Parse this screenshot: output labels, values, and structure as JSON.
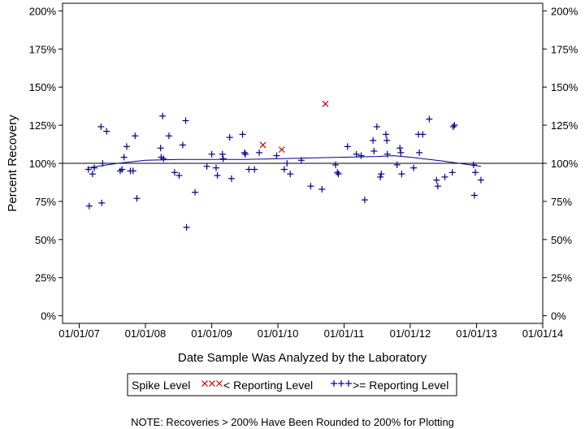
{
  "chart_data": {
    "type": "scatter",
    "title": "",
    "xlabel": "Date Sample Was Analyzed by the Laboratory",
    "ylabel": "Percent Recovery",
    "x_ticks": [
      "01/01/07",
      "01/01/08",
      "01/01/09",
      "01/01/10",
      "01/01/11",
      "01/01/12",
      "01/01/13",
      "01/01/14"
    ],
    "y_ticks": [
      "0%",
      "25%",
      "50%",
      "75%",
      "100%",
      "125%",
      "150%",
      "175%",
      "200%"
    ],
    "xlim": [
      "2006-10-01",
      "2014-01-01"
    ],
    "ylim": [
      -5,
      205
    ],
    "reference_line": 100,
    "legend": {
      "title": "Spike Level",
      "entries": [
        {
          "label": "< Reporting Level",
          "marker": "x",
          "color": "#cc0000"
        },
        {
          "label": ">= Reporting Level",
          "marker": "+",
          "color": "#00008b"
        }
      ]
    },
    "note": "NOTE: Recoveries > 200% Have Been Rounded to 200% for Plotting",
    "series": [
      {
        "name": "< Reporting Level",
        "marker": "x",
        "color": "#cc0000",
        "points": [
          {
            "x": "2009-10-10",
            "y": 112
          },
          {
            "x": "2010-01-22",
            "y": 109
          },
          {
            "x": "2010-09-20",
            "y": 139
          }
        ]
      },
      {
        "name": ">= Reporting Level",
        "marker": "+",
        "color": "#00008b",
        "points": [
          {
            "x": "2007-02-20",
            "y": 96
          },
          {
            "x": "2007-02-25",
            "y": 72
          },
          {
            "x": "2007-03-15",
            "y": 93
          },
          {
            "x": "2007-03-25",
            "y": 97
          },
          {
            "x": "2007-05-01",
            "y": 124
          },
          {
            "x": "2007-05-05",
            "y": 74
          },
          {
            "x": "2007-05-10",
            "y": 100
          },
          {
            "x": "2007-06-01",
            "y": 121
          },
          {
            "x": "2007-08-15",
            "y": 95
          },
          {
            "x": "2007-08-25",
            "y": 96
          },
          {
            "x": "2007-09-05",
            "y": 104
          },
          {
            "x": "2007-09-20",
            "y": 111
          },
          {
            "x": "2007-10-10",
            "y": 95
          },
          {
            "x": "2007-10-25",
            "y": 95
          },
          {
            "x": "2007-11-05",
            "y": 118
          },
          {
            "x": "2007-11-15",
            "y": 77
          },
          {
            "x": "2008-03-25",
            "y": 110
          },
          {
            "x": "2008-03-28",
            "y": 104
          },
          {
            "x": "2008-04-05",
            "y": 131
          },
          {
            "x": "2008-04-10",
            "y": 103
          },
          {
            "x": "2008-05-10",
            "y": 118
          },
          {
            "x": "2008-06-10",
            "y": 94
          },
          {
            "x": "2008-07-05",
            "y": 92
          },
          {
            "x": "2008-07-25",
            "y": 112
          },
          {
            "x": "2008-08-10",
            "y": 128
          },
          {
            "x": "2008-08-15",
            "y": 58
          },
          {
            "x": "2008-10-01",
            "y": 81
          },
          {
            "x": "2008-12-05",
            "y": 98
          },
          {
            "x": "2009-01-01",
            "y": 106
          },
          {
            "x": "2009-01-25",
            "y": 97
          },
          {
            "x": "2009-02-01",
            "y": 92
          },
          {
            "x": "2009-03-01",
            "y": 106
          },
          {
            "x": "2009-03-05",
            "y": 103
          },
          {
            "x": "2009-04-10",
            "y": 117
          },
          {
            "x": "2009-04-20",
            "y": 90
          },
          {
            "x": "2009-06-20",
            "y": 119
          },
          {
            "x": "2009-07-01",
            "y": 107
          },
          {
            "x": "2009-07-05",
            "y": 106
          },
          {
            "x": "2009-07-25",
            "y": 96
          },
          {
            "x": "2009-08-25",
            "y": 96
          },
          {
            "x": "2009-09-20",
            "y": 107
          },
          {
            "x": "2009-12-25",
            "y": 105
          },
          {
            "x": "2010-02-05",
            "y": 96
          },
          {
            "x": "2010-02-20",
            "y": 100
          },
          {
            "x": "2010-03-10",
            "y": 93
          },
          {
            "x": "2010-05-10",
            "y": 102
          },
          {
            "x": "2010-07-01",
            "y": 85
          },
          {
            "x": "2010-09-01",
            "y": 83
          },
          {
            "x": "2010-11-15",
            "y": 99
          },
          {
            "x": "2010-11-25",
            "y": 94
          },
          {
            "x": "2010-12-01",
            "y": 93
          },
          {
            "x": "2011-01-20",
            "y": 111
          },
          {
            "x": "2011-03-10",
            "y": 106
          },
          {
            "x": "2011-04-05",
            "y": 105
          },
          {
            "x": "2011-04-25",
            "y": 76
          },
          {
            "x": "2011-06-10",
            "y": 115
          },
          {
            "x": "2011-06-15",
            "y": 108
          },
          {
            "x": "2011-07-01",
            "y": 124
          },
          {
            "x": "2011-07-20",
            "y": 91
          },
          {
            "x": "2011-07-25",
            "y": 93
          },
          {
            "x": "2011-08-20",
            "y": 119
          },
          {
            "x": "2011-08-25",
            "y": 115
          },
          {
            "x": "2011-08-28",
            "y": 106
          },
          {
            "x": "2011-10-20",
            "y": 99
          },
          {
            "x": "2011-11-05",
            "y": 110
          },
          {
            "x": "2011-11-10",
            "y": 107
          },
          {
            "x": "2011-11-15",
            "y": 93
          },
          {
            "x": "2012-01-20",
            "y": 97
          },
          {
            "x": "2012-02-15",
            "y": 119
          },
          {
            "x": "2012-02-20",
            "y": 107
          },
          {
            "x": "2012-03-10",
            "y": 119
          },
          {
            "x": "2012-04-15",
            "y": 129
          },
          {
            "x": "2012-05-25",
            "y": 89
          },
          {
            "x": "2012-06-01",
            "y": 85
          },
          {
            "x": "2012-07-10",
            "y": 91
          },
          {
            "x": "2012-08-20",
            "y": 94
          },
          {
            "x": "2012-08-25",
            "y": 124
          },
          {
            "x": "2012-09-01",
            "y": 125
          },
          {
            "x": "2012-12-15",
            "y": 99
          },
          {
            "x": "2012-12-20",
            "y": 79
          },
          {
            "x": "2012-12-25",
            "y": 94
          },
          {
            "x": "2013-01-25",
            "y": 89
          }
        ]
      }
    ],
    "trend_line": {
      "color": "#00008b",
      "points": [
        {
          "x": "2007-02-15",
          "y": 97
        },
        {
          "x": "2007-08-01",
          "y": 100
        },
        {
          "x": "2008-01-01",
          "y": 102
        },
        {
          "x": "2008-07-01",
          "y": 102.5
        },
        {
          "x": "2009-01-01",
          "y": 102.5
        },
        {
          "x": "2009-07-01",
          "y": 102.5
        },
        {
          "x": "2010-01-01",
          "y": 103
        },
        {
          "x": "2010-07-01",
          "y": 103.5
        },
        {
          "x": "2011-01-01",
          "y": 104
        },
        {
          "x": "2011-07-01",
          "y": 104.5
        },
        {
          "x": "2011-10-01",
          "y": 105
        },
        {
          "x": "2012-01-01",
          "y": 104
        },
        {
          "x": "2012-07-01",
          "y": 101.5
        },
        {
          "x": "2013-01-25",
          "y": 98
        }
      ]
    }
  }
}
